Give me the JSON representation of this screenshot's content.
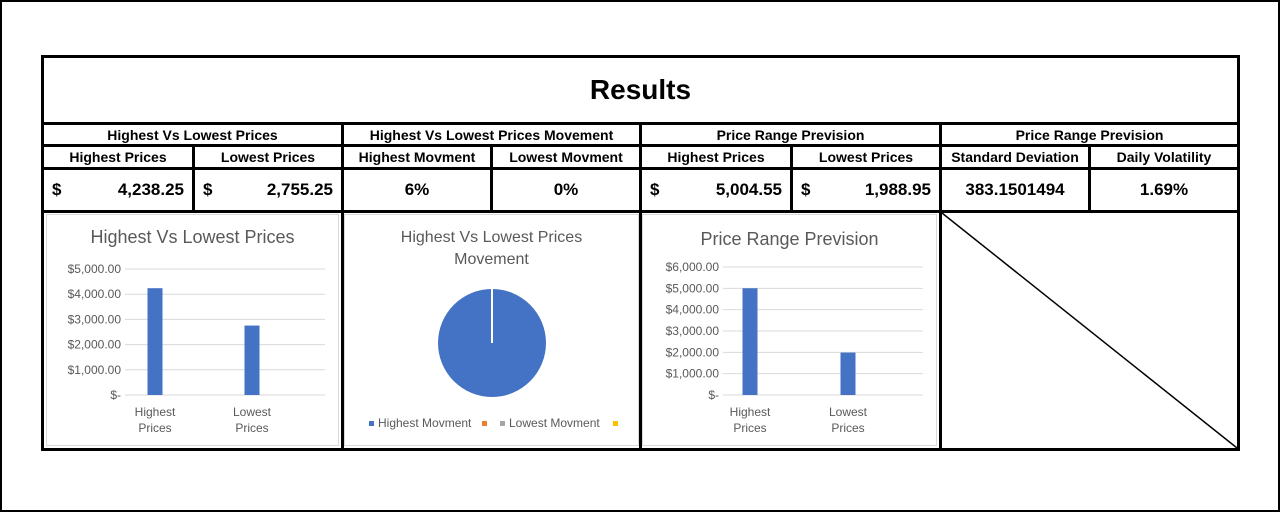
{
  "title": "Results",
  "groups": [
    {
      "label": "Highest Vs Lowest Prices"
    },
    {
      "label": "Highest Vs Lowest Prices Movement"
    },
    {
      "label": "Price Range Prevision"
    },
    {
      "label": "Price Range Prevision"
    }
  ],
  "columns": [
    {
      "header": "Highest Prices",
      "currency": "$",
      "value": "4,238.25"
    },
    {
      "header": "Lowest Prices",
      "currency": "$",
      "value": "2,755.25"
    },
    {
      "header": "Highest Movment",
      "currency": "",
      "value": "6%"
    },
    {
      "header": "Lowest Movment",
      "currency": "",
      "value": "0%"
    },
    {
      "header": "Highest Prices",
      "currency": "$",
      "value": "5,004.55"
    },
    {
      "header": "Lowest Prices",
      "currency": "$",
      "value": "1,988.95"
    },
    {
      "header": "Standard Deviation",
      "currency": "",
      "value": "383.1501494"
    },
    {
      "header": "Daily Volatility",
      "currency": "",
      "value": "1.69%"
    }
  ],
  "chart_data": [
    {
      "type": "bar",
      "title": "Highest Vs Lowest Prices",
      "categories": [
        "Highest Prices",
        "Lowest Prices"
      ],
      "category_lines": [
        [
          "Highest",
          "Prices"
        ],
        [
          "Lowest",
          "Prices"
        ]
      ],
      "values": [
        4238.25,
        2755.25
      ],
      "ylim": [
        0,
        5000
      ],
      "yticks": [
        "$-",
        "$1,000.00",
        "$2,000.00",
        "$3,000.00",
        "$4,000.00",
        "$5,000.00"
      ],
      "grid": true,
      "color": "#4472c4"
    },
    {
      "type": "pie",
      "title_lines": [
        "Highest Vs Lowest Prices",
        "Movement"
      ],
      "series": [
        {
          "name": "Highest Movment",
          "value": 0.06,
          "color": "#4472c4"
        },
        {
          "name": "",
          "value": 0,
          "color": "#ed7d31"
        },
        {
          "name": "Lowest Movment",
          "value": 0,
          "color": "#a5a5a5"
        },
        {
          "name": "",
          "value": 0,
          "color": "#ffc000"
        }
      ],
      "legend": "bottom"
    },
    {
      "type": "bar",
      "title": "Price Range Prevision",
      "categories": [
        "Highest Prices",
        "Lowest Prices"
      ],
      "category_lines": [
        [
          "Highest",
          "Prices"
        ],
        [
          "Lowest",
          "Prices"
        ]
      ],
      "values": [
        5004.55,
        1988.95
      ],
      "ylim": [
        0,
        6000
      ],
      "yticks": [
        "$-",
        "$1,000.00",
        "$2,000.00",
        "$3,000.00",
        "$4,000.00",
        "$5,000.00",
        "$6,000.00"
      ],
      "grid": true,
      "color": "#4472c4"
    }
  ]
}
